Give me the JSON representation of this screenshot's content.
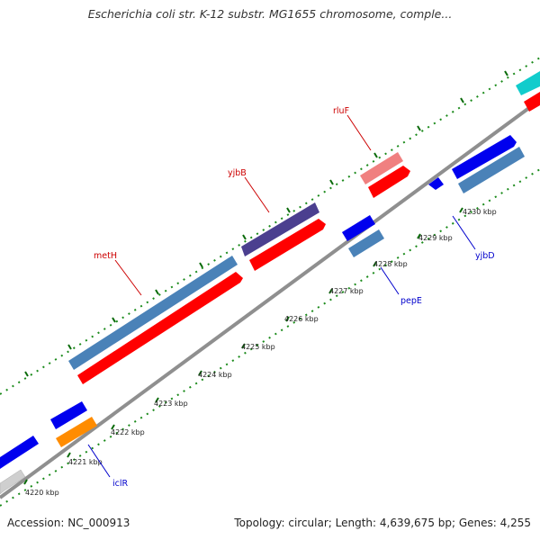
{
  "title": "Escherichia coli str. K-12 substr. MG1655 chromosome, comple...",
  "footer": {
    "accession": "Accession: NC_000913",
    "summary": "Topology: circular; Length: 4,639,675 bp; Genes: 4,255"
  },
  "scale": {
    "labels": [
      "4220 kbp",
      "4221 kbp",
      "4222 kbp",
      "4223 kbp",
      "4224 kbp",
      "4225 kbp",
      "4226 kbp",
      "4227 kbp",
      "4228 kbp",
      "4229 kbp",
      "4230 kbp"
    ]
  },
  "gene_labels": [
    {
      "name": "rluF",
      "color": "#cc0000"
    },
    {
      "name": "yjbB",
      "color": "#cc0000"
    },
    {
      "name": "metH",
      "color": "#cc0000"
    },
    {
      "name": "pepE",
      "color": "#0000cc"
    },
    {
      "name": "yjbD",
      "color": "#0000cc"
    },
    {
      "name": "iclR",
      "color": "#0000cc"
    }
  ],
  "colors": {
    "backbone": "#8f8f8f",
    "tick_green": "#1a8a1a",
    "cds_forward": "#ff0000",
    "cds_reverse": "#0000ee",
    "steelblue": "#4a82b8",
    "purple": "#4b3f8f",
    "pink": "#f08080",
    "orange": "#ff8c00",
    "gray": "#cfcfcf",
    "cyan": "#11cccc"
  }
}
